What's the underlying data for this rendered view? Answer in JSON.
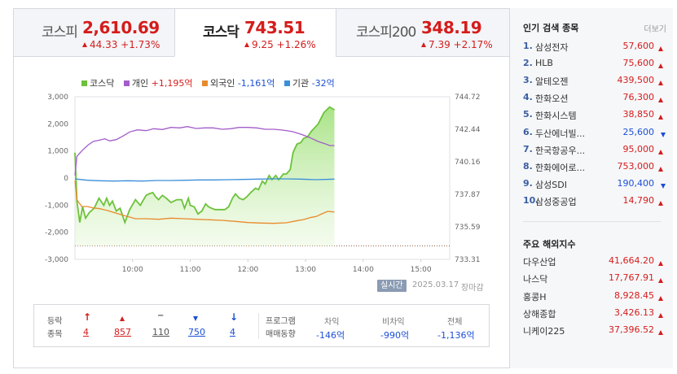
{
  "tabs": [
    {
      "name": "코스피",
      "price": "2,610.69",
      "change": "44.33 +1.73%",
      "active": false
    },
    {
      "name": "코스닥",
      "price": "743.51",
      "change": "9.25 +1.26%",
      "active": true
    },
    {
      "name": "코스피200",
      "price": "348.19",
      "change": "7.39 +2.17%",
      "active": false
    }
  ],
  "legend": {
    "kosdaq": {
      "label": "코스닥",
      "color": "#6cc23a"
    },
    "individual": {
      "label": "개인",
      "value": "+1,195억",
      "color": "#a35cc9"
    },
    "foreign": {
      "label": "외국인",
      "value": "-1,161억",
      "color": "#e88a2c"
    },
    "institution": {
      "label": "기관",
      "value": "-32억",
      "color": "#3a8fd8"
    }
  },
  "chart_data": {
    "type": "line",
    "x_ticks": [
      "10:00",
      "11:00",
      "12:00",
      "13:00",
      "14:00",
      "15:00"
    ],
    "y_left_ticks": [
      "3,000",
      "2,000",
      "1,000",
      "0",
      "-1,000",
      "-2,000",
      "-3,000"
    ],
    "y_right_ticks": [
      "744.72",
      "742.44",
      "740.16",
      "737.87",
      "735.59",
      "733.31"
    ],
    "y_left_range": [
      -3000,
      3000
    ],
    "y_right_range": [
      733.31,
      744.72
    ],
    "baseline_right": 734.26,
    "x_range_minutes": [
      540,
      930
    ],
    "series": [
      {
        "name": "코스닥",
        "axis": "right",
        "color": "#6cc23a",
        "fill": true,
        "points": [
          [
            540,
            740.8
          ],
          [
            542,
            737.4
          ],
          [
            545,
            735.9
          ],
          [
            548,
            737.0
          ],
          [
            551,
            736.2
          ],
          [
            555,
            736.6
          ],
          [
            560,
            736.9
          ],
          [
            565,
            737.6
          ],
          [
            570,
            737.1
          ],
          [
            573,
            737.6
          ],
          [
            576,
            737.1
          ],
          [
            579,
            737.4
          ],
          [
            583,
            736.7
          ],
          [
            587,
            736.9
          ],
          [
            592,
            735.9
          ],
          [
            597,
            736.8
          ],
          [
            603,
            737.5
          ],
          [
            608,
            737.1
          ],
          [
            614,
            737.8
          ],
          [
            617,
            737.9
          ],
          [
            621,
            738.0
          ],
          [
            624,
            737.7
          ],
          [
            627,
            737.5
          ],
          [
            631,
            737.8
          ],
          [
            635,
            737.6
          ],
          [
            640,
            737.3
          ],
          [
            646,
            737.5
          ],
          [
            651,
            737.5
          ],
          [
            654,
            736.9
          ],
          [
            658,
            737.6
          ],
          [
            660,
            737.1
          ],
          [
            664,
            737.0
          ],
          [
            668,
            736.5
          ],
          [
            672,
            736.7
          ],
          [
            676,
            737.2
          ],
          [
            679,
            737.0
          ],
          [
            682,
            736.9
          ],
          [
            686,
            736.8
          ],
          [
            690,
            736.8
          ],
          [
            696,
            736.8
          ],
          [
            700,
            737.0
          ],
          [
            704,
            737.6
          ],
          [
            707,
            737.9
          ],
          [
            711,
            737.6
          ],
          [
            715,
            737.5
          ],
          [
            719,
            737.7
          ],
          [
            723,
            738.0
          ],
          [
            728,
            738.3
          ],
          [
            731,
            738.2
          ],
          [
            735,
            738.8
          ],
          [
            738,
            738.6
          ],
          [
            742,
            739.2
          ],
          [
            745,
            738.9
          ],
          [
            749,
            739.2
          ],
          [
            752,
            738.9
          ],
          [
            757,
            739.3
          ],
          [
            760,
            739.3
          ],
          [
            764,
            739.6
          ],
          [
            767,
            740.8
          ],
          [
            771,
            741.4
          ],
          [
            775,
            741.5
          ],
          [
            778,
            741.8
          ],
          [
            782,
            741.9
          ],
          [
            786,
            742.3
          ],
          [
            793,
            742.8
          ],
          [
            799,
            743.6
          ],
          [
            805,
            744.0
          ],
          [
            810,
            743.8
          ]
        ]
      },
      {
        "name": "개인",
        "axis": "left",
        "color": "#a35cc9",
        "points": [
          [
            540,
            100
          ],
          [
            542,
            800
          ],
          [
            547,
            1000
          ],
          [
            553,
            1200
          ],
          [
            559,
            1350
          ],
          [
            566,
            1400
          ],
          [
            571,
            1450
          ],
          [
            576,
            1370
          ],
          [
            583,
            1420
          ],
          [
            590,
            1550
          ],
          [
            597,
            1700
          ],
          [
            605,
            1780
          ],
          [
            614,
            1750
          ],
          [
            622,
            1820
          ],
          [
            631,
            1790
          ],
          [
            640,
            1870
          ],
          [
            649,
            1850
          ],
          [
            657,
            1900
          ],
          [
            666,
            1830
          ],
          [
            675,
            1850
          ],
          [
            684,
            1850
          ],
          [
            693,
            1800
          ],
          [
            702,
            1820
          ],
          [
            711,
            1870
          ],
          [
            720,
            1870
          ],
          [
            729,
            1850
          ],
          [
            738,
            1800
          ],
          [
            747,
            1800
          ],
          [
            756,
            1770
          ],
          [
            766,
            1720
          ],
          [
            775,
            1620
          ],
          [
            784,
            1500
          ],
          [
            793,
            1350
          ],
          [
            800,
            1270
          ],
          [
            805,
            1200
          ],
          [
            810,
            1200
          ]
        ]
      },
      {
        "name": "외국인",
        "axis": "left",
        "color": "#e88a2c",
        "points": [
          [
            540,
            -100
          ],
          [
            542,
            -800
          ],
          [
            547,
            -1050
          ],
          [
            553,
            -1050
          ],
          [
            559,
            -1100
          ],
          [
            566,
            -1130
          ],
          [
            574,
            -1200
          ],
          [
            583,
            -1300
          ],
          [
            593,
            -1400
          ],
          [
            603,
            -1500
          ],
          [
            614,
            -1500
          ],
          [
            627,
            -1520
          ],
          [
            640,
            -1480
          ],
          [
            653,
            -1500
          ],
          [
            666,
            -1520
          ],
          [
            680,
            -1540
          ],
          [
            693,
            -1560
          ],
          [
            707,
            -1600
          ],
          [
            720,
            -1640
          ],
          [
            733,
            -1660
          ],
          [
            747,
            -1670
          ],
          [
            760,
            -1650
          ],
          [
            770,
            -1580
          ],
          [
            778,
            -1530
          ],
          [
            786,
            -1450
          ],
          [
            791,
            -1420
          ],
          [
            797,
            -1320
          ],
          [
            803,
            -1230
          ],
          [
            810,
            -1250
          ]
        ]
      },
      {
        "name": "기관",
        "axis": "left",
        "color": "#3a8fd8",
        "points": [
          [
            540,
            -30
          ],
          [
            545,
            -50
          ],
          [
            553,
            -80
          ],
          [
            565,
            -100
          ],
          [
            580,
            -110
          ],
          [
            595,
            -100
          ],
          [
            610,
            -110
          ],
          [
            625,
            -90
          ],
          [
            640,
            -90
          ],
          [
            655,
            -80
          ],
          [
            670,
            -70
          ],
          [
            685,
            -70
          ],
          [
            700,
            -60
          ],
          [
            715,
            -50
          ],
          [
            730,
            -40
          ],
          [
            745,
            -30
          ],
          [
            760,
            -30
          ],
          [
            775,
            -40
          ],
          [
            790,
            -60
          ],
          [
            800,
            -50
          ],
          [
            810,
            -40
          ]
        ]
      }
    ]
  },
  "realtime_label": "실시간",
  "chart_date": "2025.03.17",
  "chart_status": "장마감",
  "breadth": {
    "label_line1": "등락",
    "label_line2": "종목",
    "upper_limit": "4",
    "up": "857",
    "flat": "110",
    "down": "750",
    "lower_limit": "4",
    "flat_icon": "−",
    "up_limit_icon": "↑",
    "down_limit_icon": "↓"
  },
  "program": {
    "label_line1": "프로그램",
    "label_line2": "매매동향",
    "headers": [
      "차익",
      "비차익",
      "전체"
    ],
    "values": [
      "-146억",
      "-990억",
      "-1,136억"
    ]
  },
  "popular": {
    "title": "인기 검색 종목",
    "more": "더보기",
    "items": [
      {
        "rank": "1.",
        "name": "삼성전자",
        "price": "57,600",
        "dir": "up"
      },
      {
        "rank": "2.",
        "name": "HLB",
        "price": "75,600",
        "dir": "up"
      },
      {
        "rank": "3.",
        "name": "알테오젠",
        "price": "439,500",
        "dir": "up"
      },
      {
        "rank": "4.",
        "name": "한화오션",
        "price": "76,300",
        "dir": "up"
      },
      {
        "rank": "5.",
        "name": "한화시스템",
        "price": "38,850",
        "dir": "up"
      },
      {
        "rank": "6.",
        "name": "두산에너빌...",
        "price": "25,600",
        "dir": "down"
      },
      {
        "rank": "7.",
        "name": "한국항공우...",
        "price": "95,000",
        "dir": "up"
      },
      {
        "rank": "8.",
        "name": "한화에어로...",
        "price": "753,000",
        "dir": "up"
      },
      {
        "rank": "9.",
        "name": "삼성SDI",
        "price": "190,400",
        "dir": "down"
      },
      {
        "rank": "10.",
        "name": "삼성중공업",
        "price": "14,790",
        "dir": "up"
      }
    ]
  },
  "overseas": {
    "title": "주요 해외지수",
    "items": [
      {
        "name": "다우산업",
        "value": "41,664.20"
      },
      {
        "name": "나스닥",
        "value": "17,767.91"
      },
      {
        "name": "홍콩H",
        "value": "8,928.45"
      },
      {
        "name": "상해종합",
        "value": "3,426.13"
      },
      {
        "name": "니케이225",
        "value": "37,396.52"
      }
    ]
  }
}
